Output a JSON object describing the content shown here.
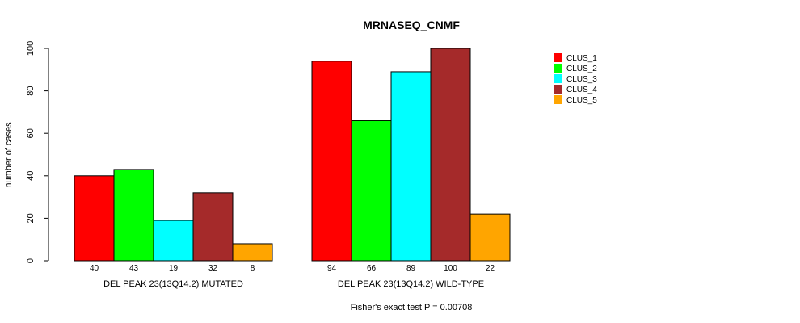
{
  "chart_data": {
    "type": "bar",
    "title": "MRNASEQ_CNMF",
    "ylabel": "number of cases",
    "ylim": [
      0,
      100
    ],
    "yticks": [
      0,
      20,
      40,
      60,
      80,
      100
    ],
    "groups": [
      {
        "label": "DEL PEAK 23(13Q14.2) MUTATED",
        "values": [
          40,
          43,
          19,
          32,
          8
        ],
        "value_labels": [
          "40",
          "43",
          "19",
          "32",
          "8"
        ]
      },
      {
        "label": "DEL PEAK 23(13Q14.2) WILD-TYPE",
        "values": [
          94,
          66,
          89,
          100,
          22
        ],
        "value_labels": [
          "94",
          "66",
          "89",
          "100",
          "22"
        ]
      }
    ],
    "series": [
      {
        "name": "CLUS_1",
        "color": "#ff0000"
      },
      {
        "name": "CLUS_2",
        "color": "#00ff00"
      },
      {
        "name": "CLUS_3",
        "color": "#00ffff"
      },
      {
        "name": "CLUS_4",
        "color": "#a52a2a"
      },
      {
        "name": "CLUS_5",
        "color": "#ffa500"
      }
    ],
    "legend_position": "top-right",
    "footnote": "Fisher's exact test P = 0.00708"
  }
}
